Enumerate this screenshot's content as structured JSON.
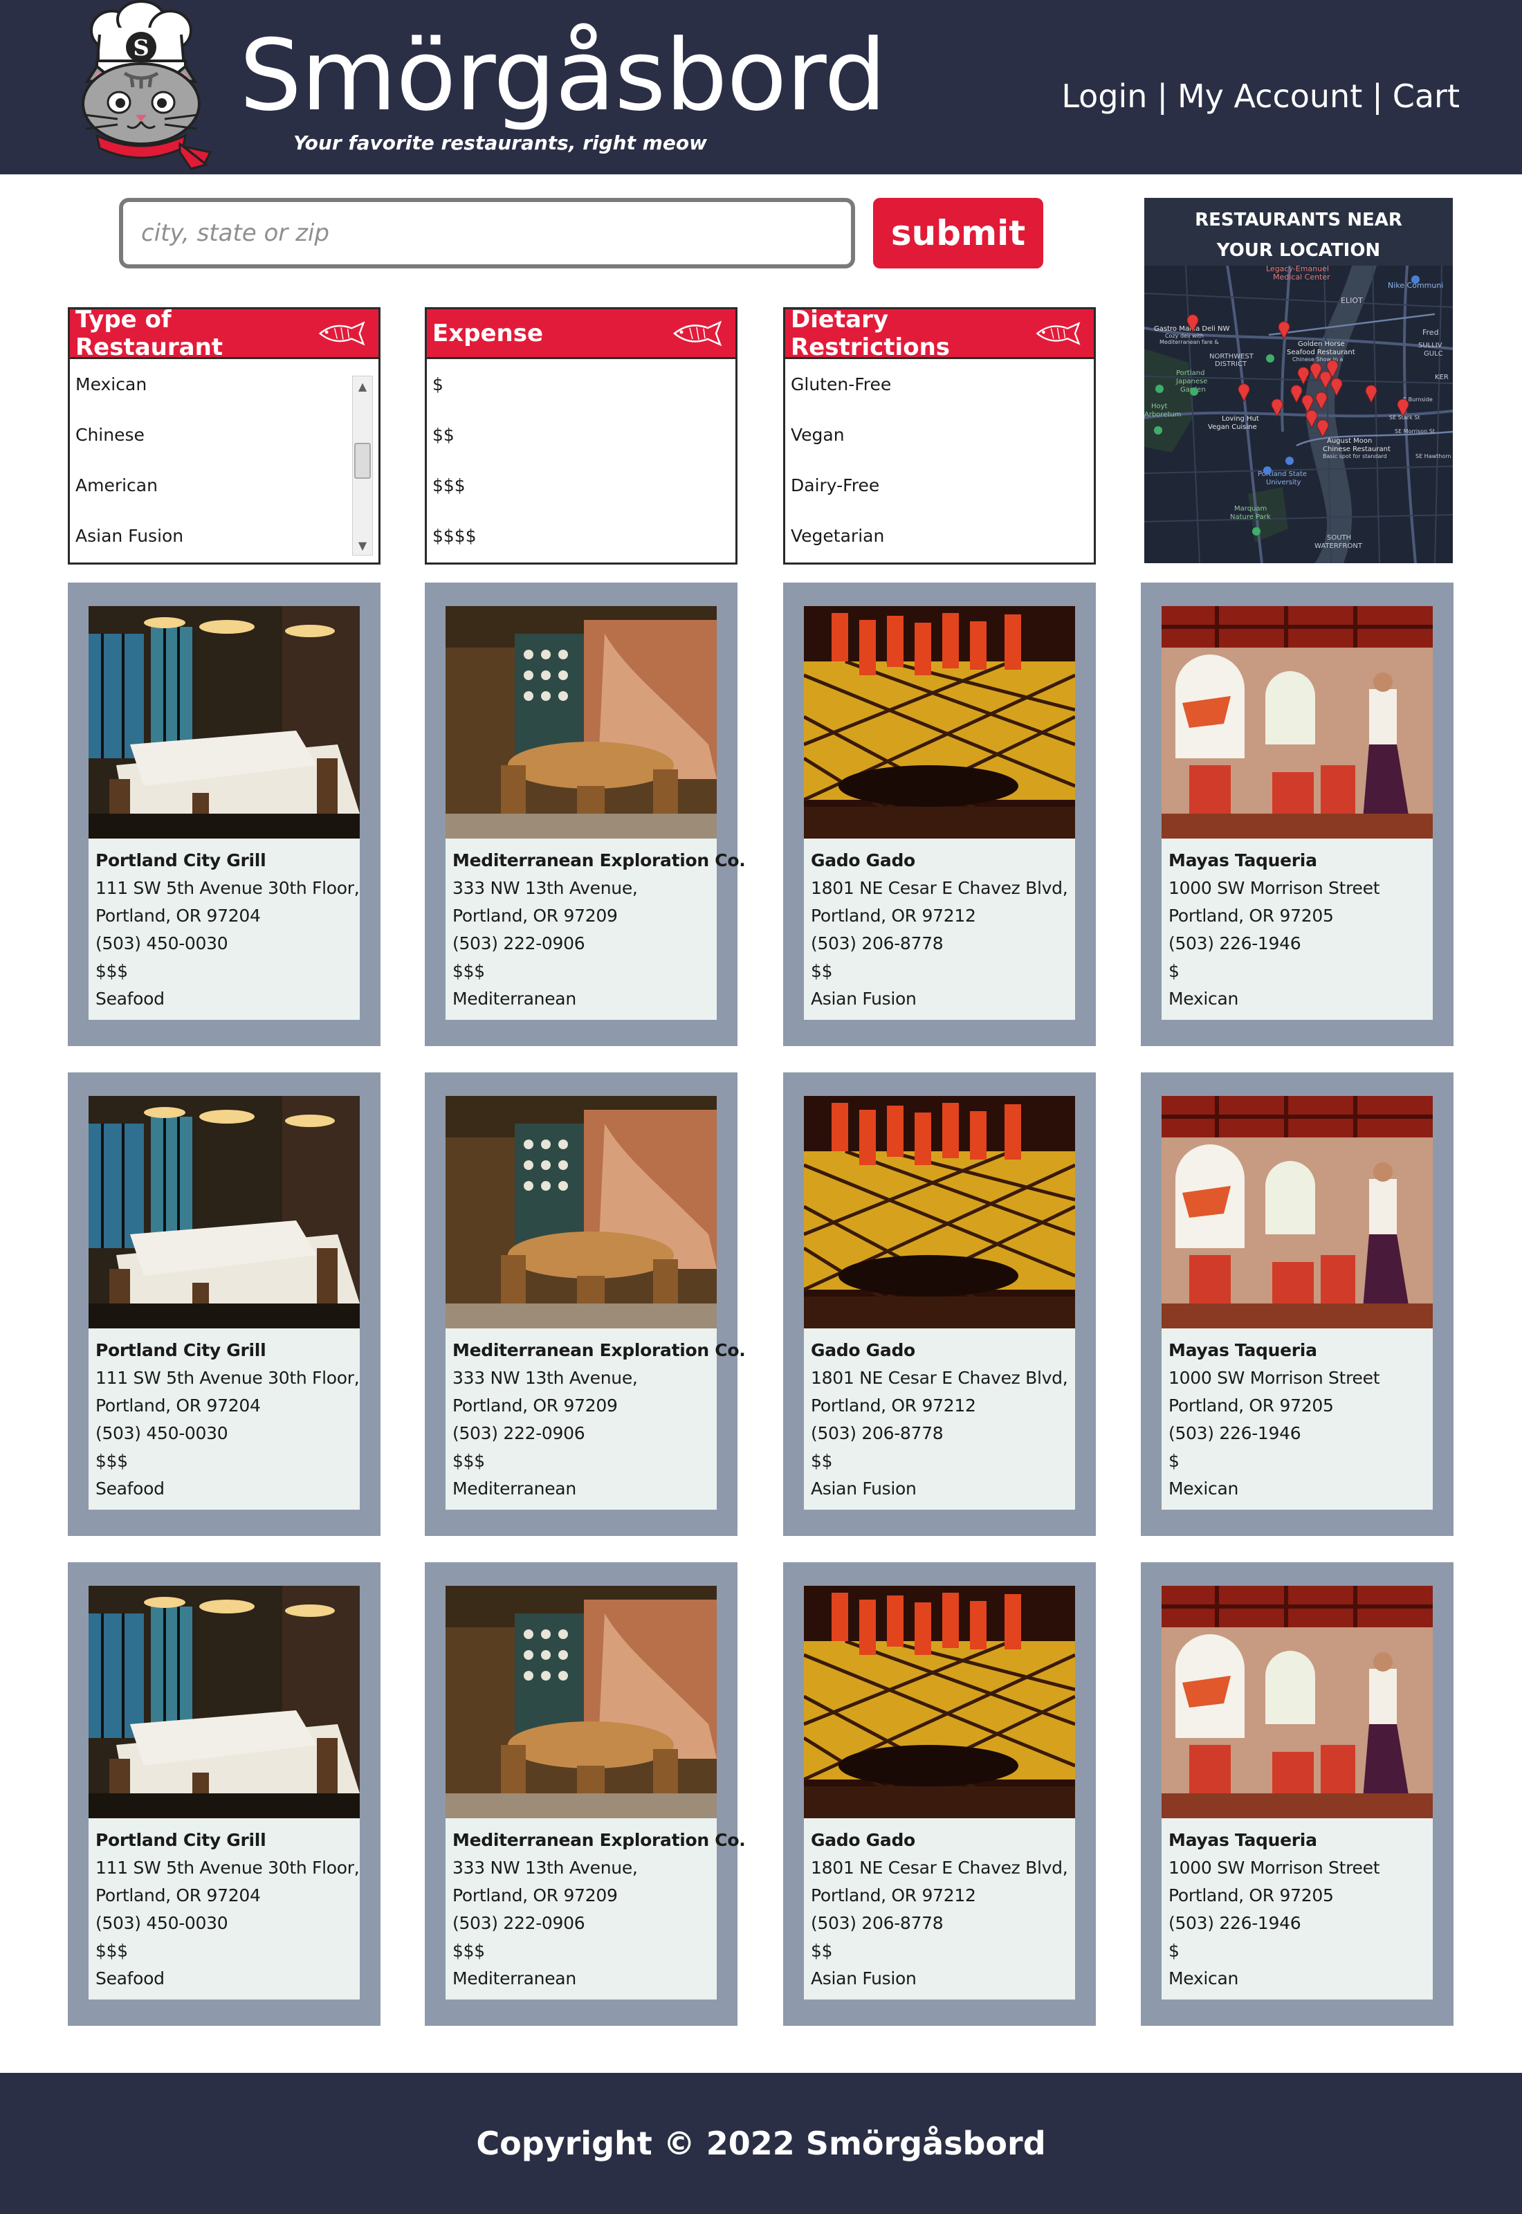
{
  "header": {
    "brand": "Smörgåsbord",
    "tagline": "Your favorite restaurants, right meow",
    "logo_letter": "S",
    "nav": [
      {
        "label": "Login"
      },
      {
        "label": "My Account"
      },
      {
        "label": "Cart"
      }
    ],
    "nav_separator": "|"
  },
  "search": {
    "placeholder": "city, state or zip",
    "value": "",
    "submit_label": "submit"
  },
  "filters": {
    "type": {
      "title": "Type of Restaurant",
      "options": [
        "Mexican",
        "Chinese",
        "American",
        "Asian Fusion"
      ]
    },
    "expense": {
      "title": "Expense",
      "options": [
        "$",
        "$$",
        "$$$",
        "$$$$"
      ]
    },
    "dietary": {
      "title": "Dietary Restrictions",
      "options": [
        "Gluten-Free",
        "Vegan",
        "Dairy-Free",
        "Vegetarian"
      ]
    }
  },
  "map": {
    "title_line1": "RESTAURANTS NEAR",
    "title_line2": "YOUR LOCATION",
    "labels": {
      "legacy": "Legacy-Emanuel",
      "medical": "Medical Center",
      "eliot": "ELIOT",
      "nike": "Nike Communi",
      "gastro": "Gastro Mania Deli NW",
      "gastro_sub1": "Cozy deli with",
      "gastro_sub2": "Mediterranean fare &",
      "nw_district1": "NORTHWEST",
      "nw_district2": "DISTRICT",
      "golden": "Golden Horse",
      "golden2": "Seafood Restaurant",
      "golden3": "Chinese Show in a",
      "fred": "Fred",
      "sullivan1": "SULLIV",
      "sullivan2": "GULC",
      "kerns": "KER",
      "pjg1": "Portland",
      "pjg2": "Japanese",
      "pjg3": "Garden",
      "hoyt1": "Hoyt",
      "hoyt2": "Arboretum",
      "loving1": "Loving Hut",
      "loving2": "Vegan Cuisine",
      "august1": "August Moon",
      "august2": "Chinese Restaurant",
      "august3": "Basic spot for standard",
      "psu1": "Portland State",
      "psu2": "University",
      "marquam1": "Marquam",
      "marquam2": "Nature Park",
      "south1": "SOUTH",
      "south2": "WATERFRONT",
      "estark": "SE Stark St",
      "emorrison": "SE Morrison St",
      "eburnside": "E Burnside",
      "ehawthorne": "SE Hawthorn"
    }
  },
  "restaurants": [
    {
      "name": "Portland City Grill",
      "address1": "111 SW 5th Avenue 30th Floor,",
      "address2": "Portland, OR 97204",
      "phone": "(503) 450-0030",
      "price": "$$$",
      "cuisine": "Seafood"
    },
    {
      "name": "Mediterranean Exploration Co.",
      "address1": "333 NW 13th Avenue,",
      "address2": "Portland, OR 97209",
      "phone": "(503) 222-0906",
      "price": "$$$",
      "cuisine": "Mediterranean"
    },
    {
      "name": "Gado Gado",
      "address1": "1801 NE Cesar E Chavez Blvd,",
      "address2": "Portland, OR 97212",
      "phone": "(503) 206-8778",
      "price": "$$",
      "cuisine": "Asian Fusion"
    },
    {
      "name": "Mayas Taqueria",
      "address1": "1000 SW Morrison Street",
      "address2": "Portland, OR 97205",
      "phone": "(503) 226-1946",
      "price": "$",
      "cuisine": "Mexican"
    }
  ],
  "footer": {
    "copyright": "Copyright © 2022 Smörgåsbord"
  },
  "colors": {
    "navy": "#2a2f45",
    "red": "#e31b3a",
    "card_frame": "#8e9aab",
    "card_body": "#eaf1ef"
  }
}
